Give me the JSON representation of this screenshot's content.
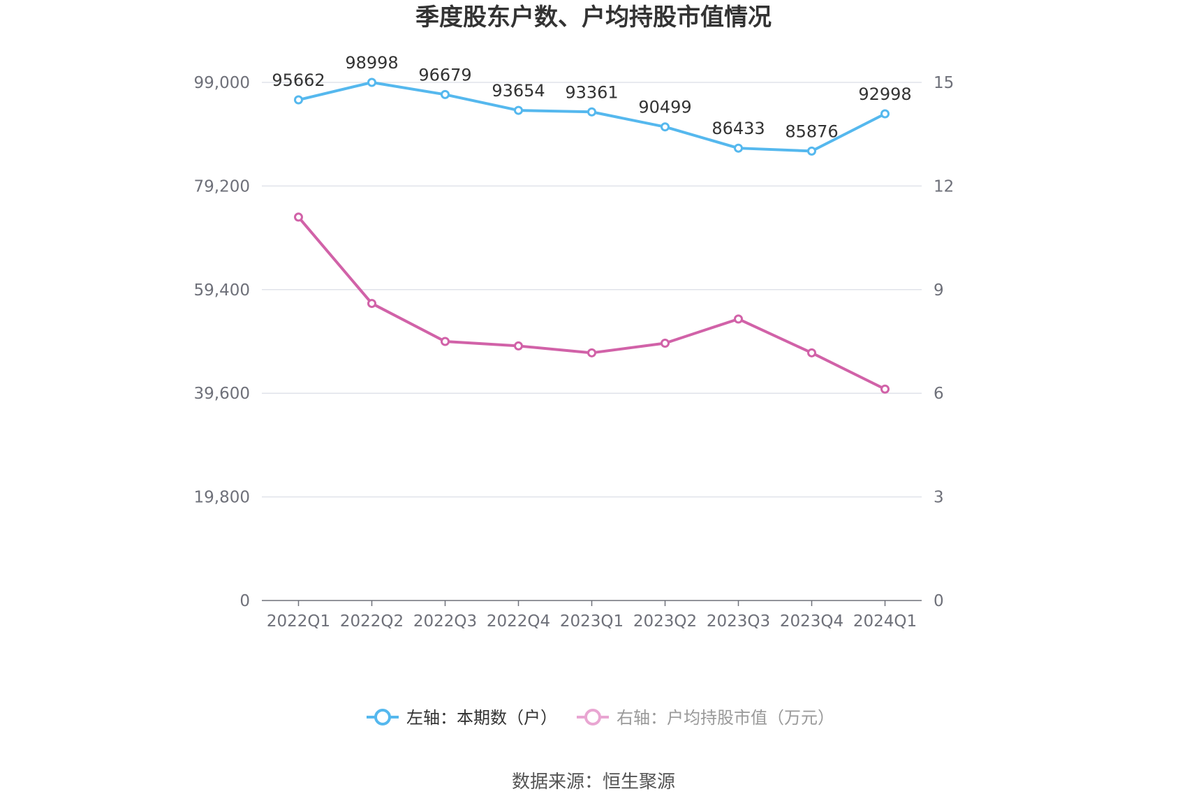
{
  "chart_data": {
    "type": "line",
    "title": "季度股东户数、户均持股市值情况",
    "categories": [
      "2022Q1",
      "2022Q2",
      "2022Q3",
      "2022Q4",
      "2023Q1",
      "2023Q2",
      "2023Q3",
      "2023Q4",
      "2024Q1"
    ],
    "y_left": {
      "ticks": [
        "0",
        "19,800",
        "39,600",
        "59,400",
        "79,200",
        "99,000"
      ],
      "range": [
        0,
        99000
      ]
    },
    "y_right": {
      "ticks": [
        "0",
        "3",
        "6",
        "9",
        "12",
        "15"
      ],
      "range": [
        0,
        15
      ]
    },
    "grid": true,
    "legend_position": "bottom",
    "series": [
      {
        "name": "左轴：本期数（户）",
        "axis": "left",
        "color": "#55b8ee",
        "show_labels": true,
        "values": [
          95662,
          98998,
          96679,
          93654,
          93361,
          90499,
          86433,
          85876,
          92998
        ]
      },
      {
        "name": "右轴：户均持股市值（万元）",
        "axis": "right",
        "color": "#d162a8",
        "show_labels": false,
        "values": [
          11.1,
          8.6,
          7.5,
          7.37,
          7.17,
          7.45,
          8.15,
          7.17,
          6.12
        ]
      }
    ]
  },
  "legend_colors": {
    "left": "#55b8ee",
    "right": "#e9a6d2"
  },
  "source": "数据来源：恒生聚源"
}
